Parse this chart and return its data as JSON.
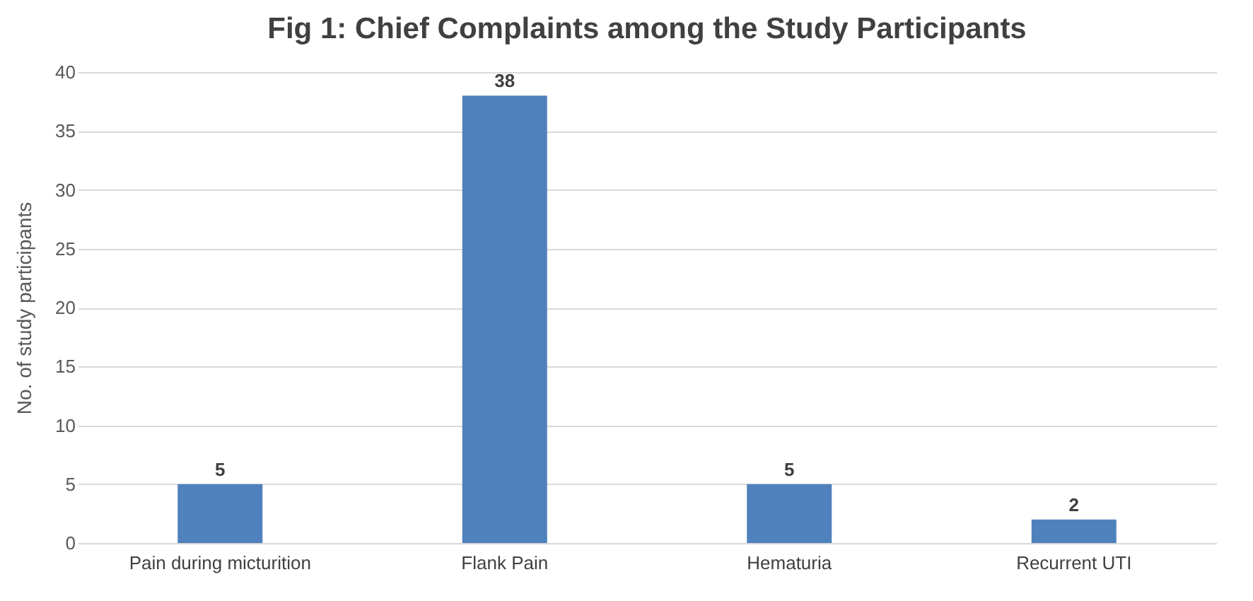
{
  "chart_data": {
    "type": "bar",
    "title": "Fig 1: Chief Complaints among the Study Participants",
    "ylabel": "No. of study participants",
    "categories": [
      "Pain during micturition",
      "Flank Pain",
      "Hematuria",
      "Recurrent UTI"
    ],
    "values": [
      5,
      38,
      5,
      2
    ],
    "color": "#4f81bd",
    "ylim": [
      0,
      40
    ],
    "yticks": [
      0,
      5,
      10,
      15,
      20,
      25,
      30,
      35,
      40
    ],
    "grid": "y",
    "data_labels": true
  }
}
